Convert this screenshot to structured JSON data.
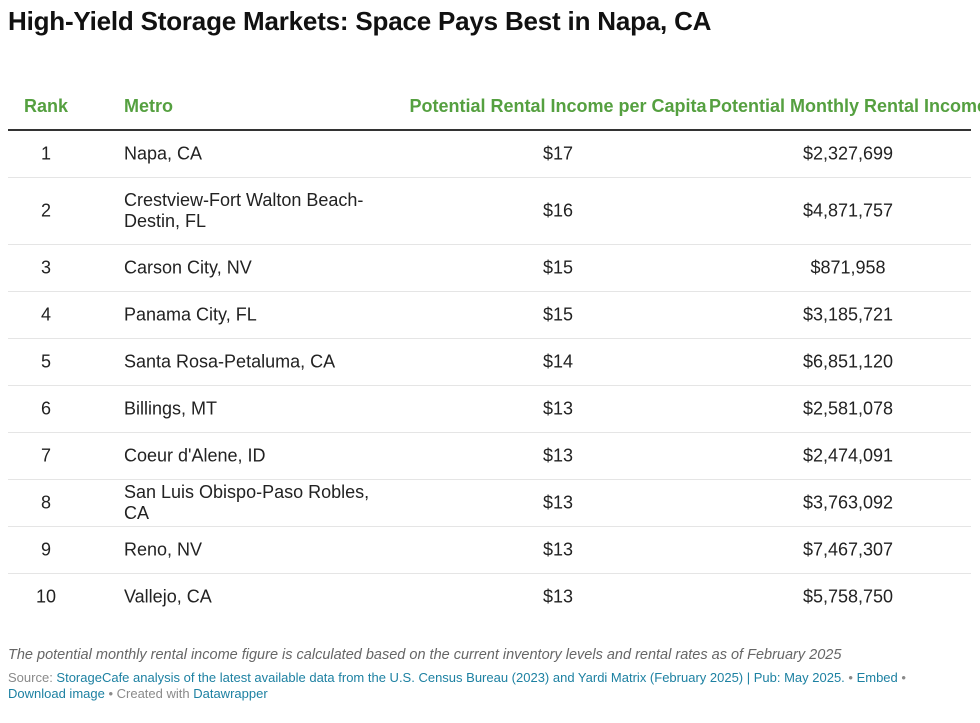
{
  "title": "High-Yield Storage Markets: Space Pays Best in Napa, CA",
  "columns": {
    "rank": "Rank",
    "metro": "Metro",
    "per_capita": "Potential Rental Income per Capita",
    "monthly": "Potential Monthly Rental Income"
  },
  "colors": {
    "header_text": "#55a040",
    "link": "#1d81a2",
    "note": "#666666"
  },
  "chart_data": {
    "type": "table",
    "title": "High-Yield Storage Markets: Space Pays Best in Napa, CA",
    "columns": [
      "Rank",
      "Metro",
      "Potential Rental Income per Capita",
      "Potential Monthly Rental Income"
    ],
    "rows": [
      {
        "rank": "1",
        "metro": "Napa, CA",
        "per_capita": "$17",
        "monthly": "$2,327,699"
      },
      {
        "rank": "2",
        "metro": "Crestview-Fort Walton Beach-Destin, FL",
        "per_capita": "$16",
        "monthly": "$4,871,757"
      },
      {
        "rank": "3",
        "metro": "Carson City, NV",
        "per_capita": "$15",
        "monthly": "$871,958"
      },
      {
        "rank": "4",
        "metro": "Panama City, FL",
        "per_capita": "$15",
        "monthly": "$3,185,721"
      },
      {
        "rank": "5",
        "metro": "Santa Rosa-Petaluma, CA",
        "per_capita": "$14",
        "monthly": "$6,851,120"
      },
      {
        "rank": "6",
        "metro": "Billings, MT",
        "per_capita": "$13",
        "monthly": "$2,581,078"
      },
      {
        "rank": "7",
        "metro": "Coeur d'Alene, ID",
        "per_capita": "$13",
        "monthly": "$2,474,091"
      },
      {
        "rank": "8",
        "metro": "San Luis Obispo-Paso Robles, CA",
        "per_capita": "$13",
        "monthly": "$3,763,092"
      },
      {
        "rank": "9",
        "metro": "Reno, NV",
        "per_capita": "$13",
        "monthly": "$7,467,307"
      },
      {
        "rank": "10",
        "metro": "Vallejo, CA",
        "per_capita": "$13",
        "monthly": "$5,758,750"
      }
    ]
  },
  "footer": {
    "note": "The potential monthly rental income figure is calculated based on the current inventory levels and rental rates as of February 2025",
    "source_label": "Source: ",
    "source_link": "StorageCafe analysis of the latest available data from the U.S. Census Bureau (2023) and Yardi Matrix (February 2025) | Pub: May 2025.",
    "sep1": " • ",
    "embed": "Embed",
    "sep2": " • ",
    "download": "Download image",
    "created_with": " • Created with ",
    "datawrapper": "Datawrapper"
  }
}
